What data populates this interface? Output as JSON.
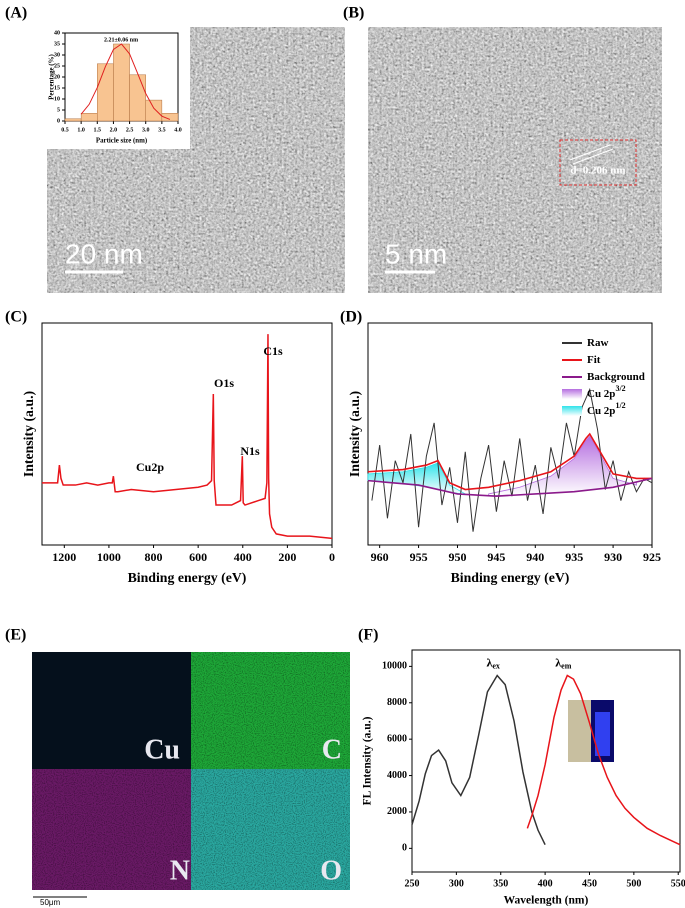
{
  "panel_labels": [
    "(A)",
    "(B)",
    "(C)",
    "(D)",
    "(E)",
    "(F)"
  ],
  "tem": {
    "scale_bars": [
      "20 nm",
      "5 nm"
    ],
    "lattice_spacing": "d=0.206 nm"
  },
  "eds": {
    "elements": [
      "Cu",
      "C",
      "N",
      "O"
    ],
    "scale_bar": "50μm"
  },
  "chart_data": [
    {
      "type": "histogram",
      "xlabel": "Particle size (nm)",
      "ylabel": "Percentage (%)",
      "annotation": "2.21±0.06 nm",
      "bins": [
        0.5,
        1,
        1.5,
        2,
        2.5,
        3,
        3.5,
        4
      ],
      "values": [
        1,
        3.5,
        26,
        35,
        21,
        9.5,
        3.5
      ],
      "color": "#f8c491",
      "xlim": [
        0.5,
        4
      ],
      "xticks": [
        0.5,
        {
          "value": 1,
          "label": "1.0"
        },
        1.5,
        {
          "value": 2,
          "label": "2.0"
        },
        2.5,
        {
          "value": 3,
          "label": "3.0"
        },
        3.5,
        {
          "value": 4,
          "label": "4.0"
        }
      ],
      "ylim": [
        0,
        40
      ],
      "yticks": [
        0,
        5,
        10,
        15,
        20,
        25,
        30,
        35,
        40
      ],
      "fit": {
        "color": "#e02020",
        "x": [
          1,
          1.25,
          1.5,
          1.75,
          2,
          2.25,
          2.5,
          2.75,
          3,
          3.25,
          3.5,
          3.75
        ],
        "values": [
          3.1,
          7.6,
          15.2,
          24.7,
          32.5,
          35,
          30.5,
          21.6,
          12.5,
          5.8,
          2.2,
          0.7
        ]
      }
    },
    {
      "type": "line",
      "xlabel": "Binding energy (eV)",
      "ylabel": "Intensity (a.u.)",
      "annotations": [
        "Cu2p",
        "O1s",
        "N1s",
        "C1s"
      ],
      "xlim": [
        1300,
        0
      ],
      "xticks": [
        1200,
        1000,
        800,
        600,
        400,
        200,
        0
      ],
      "ylim": [
        0,
        100
      ],
      "series": [
        {
          "color": "#e8141a",
          "x": [
            1300,
            1230,
            1222,
            1215,
            1205,
            1150,
            1100,
            1050,
            1000,
            985,
            980,
            972,
            960,
            900,
            800,
            700,
            600,
            560,
            540,
            532,
            528,
            520,
            450,
            410,
            402,
            398,
            390,
            330,
            300,
            292,
            287,
            284,
            280,
            270,
            250,
            200,
            100,
            0
          ],
          "values": [
            28,
            28,
            36,
            30,
            27,
            27,
            28,
            27,
            28,
            28,
            31,
            24,
            24,
            25,
            24,
            25,
            26,
            27,
            29,
            68,
            29,
            18,
            18,
            20,
            40,
            19,
            18,
            20,
            21,
            28,
            95,
            30,
            14,
            8,
            5,
            4,
            4,
            3
          ]
        }
      ]
    },
    {
      "type": "line",
      "xlabel": "Binding energy (eV)",
      "ylabel": "Intensity (a.u.)",
      "legend": "upper right",
      "xlim": [
        961.5,
        925
      ],
      "xticks": [
        960,
        955,
        950,
        945,
        940,
        935,
        930,
        925
      ],
      "ylim": [
        0,
        100
      ],
      "series": [
        {
          "name": "Raw",
          "color": "#333333",
          "x": [
            961,
            960,
            959,
            958,
            957,
            956,
            955,
            954,
            953,
            952,
            951,
            950,
            949,
            948,
            947,
            946,
            945,
            944,
            943,
            942,
            941,
            940,
            939,
            938,
            937,
            936,
            935,
            934,
            933,
            932,
            931,
            930,
            929,
            928,
            927,
            926,
            925
          ],
          "values": [
            20,
            45,
            12,
            38,
            28,
            50,
            8,
            40,
            55,
            18,
            35,
            10,
            42,
            6,
            30,
            45,
            15,
            38,
            22,
            48,
            20,
            36,
            14,
            44,
            30,
            55,
            40,
            62,
            70,
            52,
            25,
            38,
            20,
            33,
            24,
            30,
            28
          ]
        },
        {
          "name": "Fit",
          "color": "#e8141a",
          "x": [
            961.5,
            957,
            954,
            952.5,
            951,
            949,
            946,
            942,
            938,
            935,
            933.5,
            933,
            932,
            930,
            927,
            925
          ],
          "values": [
            33,
            34,
            36,
            38,
            28,
            25,
            26,
            29,
            33,
            40,
            48,
            50,
            44,
            32,
            30,
            30
          ]
        },
        {
          "name": "Background",
          "color": "#8b1a8b",
          "x": [
            961.5,
            955,
            950,
            945,
            940,
            935,
            930,
            925
          ],
          "values": [
            29,
            27,
            23,
            22,
            23,
            24,
            26,
            30
          ]
        },
        {
          "name": "Cu 2p",
          "superscript": "3/2",
          "color": "#b56ee0",
          "fill": true,
          "x": [
            946,
            942,
            938,
            935,
            933.5,
            933,
            932,
            930,
            927
          ],
          "values": [
            23,
            26,
            31,
            39,
            47,
            49,
            43,
            30,
            27
          ]
        },
        {
          "name": "Cu 2p",
          "superscript": "1/2",
          "color": "#2fe3ea",
          "fill": true,
          "x": [
            961.5,
            957,
            954,
            952.5,
            951,
            949
          ],
          "values": [
            32,
            33,
            35,
            37,
            27,
            23
          ]
        }
      ]
    },
    {
      "type": "line",
      "xlabel": "Wavelength (nm)",
      "ylabel": "FL Intensity (a.u.)",
      "xlim": [
        250,
        552
      ],
      "xticks": [
        250,
        300,
        350,
        400,
        450,
        500,
        550
      ],
      "ylim": [
        -1300,
        10900
      ],
      "yticks": [
        0,
        2000,
        4000,
        6000,
        8000,
        10000
      ],
      "series": [
        {
          "label": "λ",
          "subscript": "ex",
          "color": "#333333",
          "x": [
            250,
            258,
            265,
            272,
            280,
            288,
            295,
            305,
            315,
            325,
            335,
            346,
            355,
            365,
            375,
            385,
            392,
            400
          ],
          "values": [
            1300,
            2600,
            4100,
            5100,
            5400,
            4800,
            3600,
            2900,
            3900,
            6200,
            8600,
            9500,
            9000,
            7000,
            4200,
            2000,
            1000,
            200
          ]
        },
        {
          "label": "λ",
          "subscript": "em",
          "color": "#e8141a",
          "x": [
            380,
            385,
            392,
            400,
            410,
            418,
            425,
            432,
            440,
            450,
            460,
            470,
            480,
            490,
            500,
            515,
            530,
            552
          ],
          "values": [
            1100,
            1800,
            2900,
            4600,
            7200,
            8700,
            9500,
            9300,
            8500,
            6900,
            5200,
            3900,
            2900,
            2200,
            1700,
            1100,
            700,
            200
          ]
        }
      ]
    }
  ]
}
